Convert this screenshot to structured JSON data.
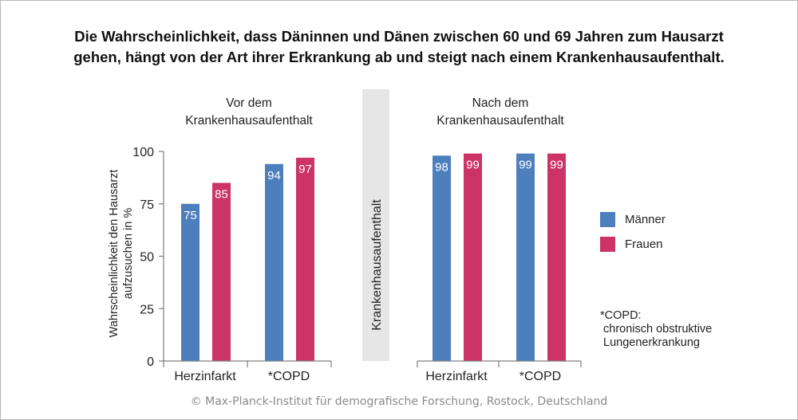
{
  "title_line1": "Die Wahrscheinlichkeit, dass Däninnen und Dänen zwischen 60 und 69 Jahren zum Hausarzt",
  "title_line2": "gehen, hängt von der Art ihrer Erkrankung ab und steigt nach einem Krankenhausaufenthalt.",
  "group_before_line1": "Vor dem",
  "group_before_line2": "Krankenhausaufenthalt",
  "group_after_line1": "Nach dem",
  "group_after_line2": "Krankenhausaufenthalt",
  "ylabel_line1": "Wahrscheinlichkeit den Hausarzt",
  "ylabel_line2": "aufzusuchen in %",
  "separator_label": "Krankenhausaufenthalt",
  "legend": [
    {
      "label": "Männer"
    },
    {
      "label": "Frauen"
    }
  ],
  "note_lines": [
    "*COPD:",
    " chronisch obstruktive",
    " Lungenerkrankung"
  ],
  "credit": "© Max-Planck-Institut für demografische Forschung, Rostock, Deutschland",
  "colors": {
    "maenner": "#4e7fbd",
    "frauen": "#cc3366",
    "separator": "#e6e6e6",
    "axis": "#7f7f7f"
  },
  "chart_data": {
    "type": "bar",
    "categories": [
      "Herzinfarkt",
      "*COPD",
      "Herzinfarkt",
      "*COPD"
    ],
    "groups": [
      {
        "name": "Vor dem Krankenhausaufenthalt",
        "categories": [
          "Herzinfarkt",
          "*COPD"
        ]
      },
      {
        "name": "Nach dem Krankenhausaufenthalt",
        "categories": [
          "Herzinfarkt",
          "*COPD"
        ]
      }
    ],
    "series": [
      {
        "name": "Männer",
        "values": [
          75,
          94,
          98,
          99
        ]
      },
      {
        "name": "Frauen",
        "values": [
          85,
          97,
          99,
          99
        ]
      }
    ],
    "data_labels": true,
    "yticks": [
      0,
      25,
      50,
      75,
      100
    ],
    "ylim": [
      0,
      100
    ],
    "ylabel": "Wahrscheinlichkeit den Hausarzt aufzusuchen in %",
    "legend_position": "right",
    "grid": false
  }
}
